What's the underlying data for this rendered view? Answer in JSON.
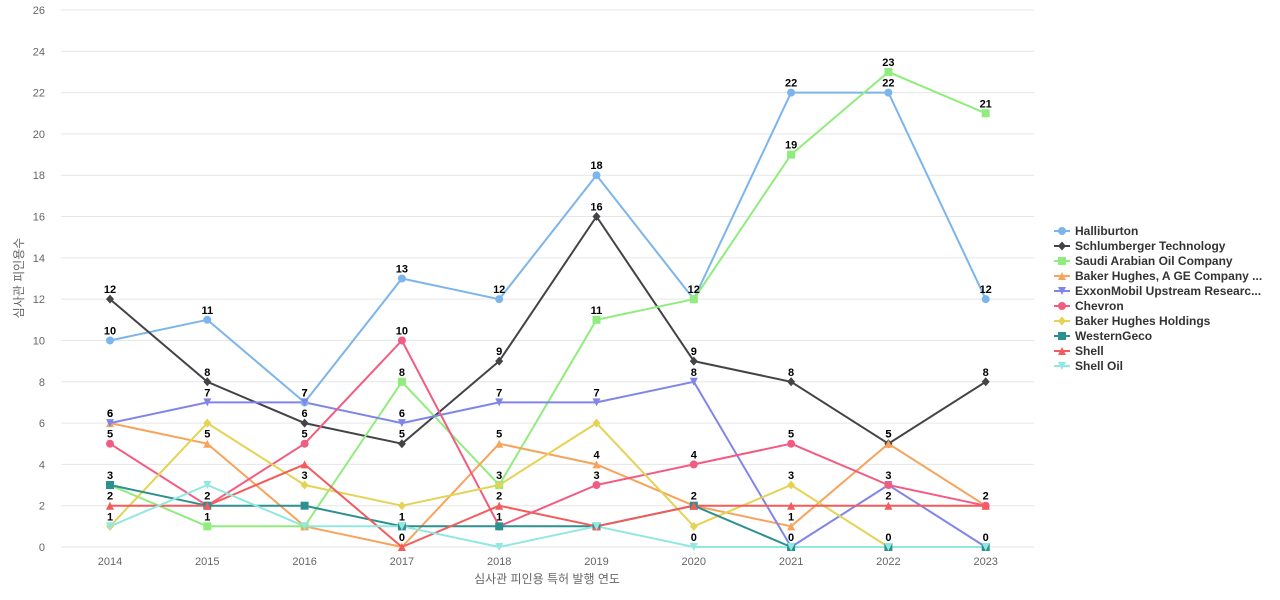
{
  "chart_data": {
    "type": "line",
    "xlabel": "심사관 피인용 특허 발행 연도",
    "ylabel": "심사관 피인용수",
    "ylim": [
      0,
      26
    ],
    "yticks": [
      0,
      2,
      4,
      6,
      8,
      10,
      12,
      14,
      16,
      18,
      20,
      22,
      24,
      26
    ],
    "categories": [
      "2014",
      "2015",
      "2016",
      "2017",
      "2018",
      "2019",
      "2020",
      "2021",
      "2022",
      "2023"
    ],
    "grid": true,
    "legend_position": "right",
    "series": [
      {
        "name": "Halliburton",
        "color": "#7cb5ec",
        "marker": "circle",
        "values": [
          10,
          11,
          7,
          13,
          12,
          18,
          12,
          22,
          22,
          12
        ]
      },
      {
        "name": "Schlumberger Technology",
        "color": "#434348",
        "marker": "diamond",
        "values": [
          12,
          8,
          6,
          5,
          9,
          16,
          9,
          8,
          5,
          8
        ]
      },
      {
        "name": "Saudi Arabian Oil Company",
        "color": "#90ed7d",
        "marker": "square",
        "values": [
          3,
          1,
          1,
          8,
          3,
          11,
          12,
          19,
          23,
          21
        ]
      },
      {
        "name": "Baker Hughes, A GE Company ...",
        "color": "#f7a35c",
        "marker": "triangle",
        "values": [
          6,
          5,
          1,
          0,
          5,
          4,
          2,
          1,
          5,
          2
        ]
      },
      {
        "name": "ExxonMobil Upstream Researc...",
        "color": "#8085e9",
        "marker": "triangle-down",
        "values": [
          6,
          7,
          7,
          6,
          7,
          7,
          8,
          0,
          3,
          0
        ]
      },
      {
        "name": "Chevron",
        "color": "#f15c80",
        "marker": "circle",
        "values": [
          5,
          2,
          5,
          10,
          1,
          3,
          4,
          5,
          3,
          2
        ]
      },
      {
        "name": "Baker Hughes Holdings",
        "color": "#e4d354",
        "marker": "diamond",
        "values": [
          1,
          6,
          3,
          2,
          3,
          6,
          1,
          3,
          0,
          null
        ]
      },
      {
        "name": "WesternGeco",
        "color": "#2b908f",
        "marker": "square",
        "values": [
          3,
          2,
          2,
          1,
          1,
          1,
          2,
          0,
          0,
          0
        ]
      },
      {
        "name": "Shell",
        "color": "#f45b5b",
        "marker": "triangle",
        "values": [
          2,
          2,
          4,
          0,
          2,
          1,
          2,
          2,
          2,
          2
        ]
      },
      {
        "name": "Shell Oil",
        "color": "#91e8e1",
        "marker": "triangle-down",
        "values": [
          1,
          3,
          1,
          1,
          0,
          1,
          0,
          0,
          0,
          0
        ]
      }
    ],
    "data_labels": [
      {
        "series": 0,
        "index": 0
      },
      {
        "series": 0,
        "index": 1
      },
      {
        "series": 0,
        "index": 2
      },
      {
        "series": 0,
        "index": 3
      },
      {
        "series": 0,
        "index": 4
      },
      {
        "series": 0,
        "index": 5
      },
      {
        "series": 0,
        "index": 6
      },
      {
        "series": 0,
        "index": 7
      },
      {
        "series": 0,
        "index": 8
      },
      {
        "series": 0,
        "index": 9
      },
      {
        "series": 1,
        "index": 0
      },
      {
        "series": 1,
        "index": 1
      },
      {
        "series": 1,
        "index": 2
      },
      {
        "series": 1,
        "index": 3
      },
      {
        "series": 1,
        "index": 4
      },
      {
        "series": 1,
        "index": 5
      },
      {
        "series": 1,
        "index": 6
      },
      {
        "series": 1,
        "index": 7
      },
      {
        "series": 1,
        "index": 8
      },
      {
        "series": 1,
        "index": 9
      },
      {
        "series": 2,
        "index": 0
      },
      {
        "series": 2,
        "index": 1
      },
      {
        "series": 2,
        "index": 3
      },
      {
        "series": 2,
        "index": 4
      },
      {
        "series": 2,
        "index": 5
      },
      {
        "series": 2,
        "index": 7
      },
      {
        "series": 2,
        "index": 8
      },
      {
        "series": 2,
        "index": 9
      },
      {
        "series": 3,
        "index": 0
      },
      {
        "series": 3,
        "index": 1
      },
      {
        "series": 3,
        "index": 3
      },
      {
        "series": 3,
        "index": 4
      },
      {
        "series": 3,
        "index": 5
      },
      {
        "series": 3,
        "index": 7
      },
      {
        "series": 3,
        "index": 8
      },
      {
        "series": 3,
        "index": 9
      },
      {
        "series": 4,
        "index": 0
      },
      {
        "series": 4,
        "index": 1
      },
      {
        "series": 4,
        "index": 2
      },
      {
        "series": 4,
        "index": 3
      },
      {
        "series": 4,
        "index": 4
      },
      {
        "series": 4,
        "index": 5
      },
      {
        "series": 4,
        "index": 6
      },
      {
        "series": 4,
        "index": 9
      },
      {
        "series": 5,
        "index": 0
      },
      {
        "series": 5,
        "index": 1
      },
      {
        "series": 5,
        "index": 2
      },
      {
        "series": 5,
        "index": 3
      },
      {
        "series": 5,
        "index": 5
      },
      {
        "series": 5,
        "index": 6
      },
      {
        "series": 5,
        "index": 7
      },
      {
        "series": 5,
        "index": 8
      },
      {
        "series": 6,
        "index": 0
      },
      {
        "series": 6,
        "index": 2
      },
      {
        "series": 6,
        "index": 7
      },
      {
        "series": 7,
        "index": 4
      },
      {
        "series": 7,
        "index": 6
      },
      {
        "series": 7,
        "index": 7
      },
      {
        "series": 7,
        "index": 8
      },
      {
        "series": 8,
        "index": 0
      },
      {
        "series": 8,
        "index": 4
      },
      {
        "series": 8,
        "index": 8
      },
      {
        "series": 9,
        "index": 3
      },
      {
        "series": 9,
        "index": 6
      }
    ]
  }
}
